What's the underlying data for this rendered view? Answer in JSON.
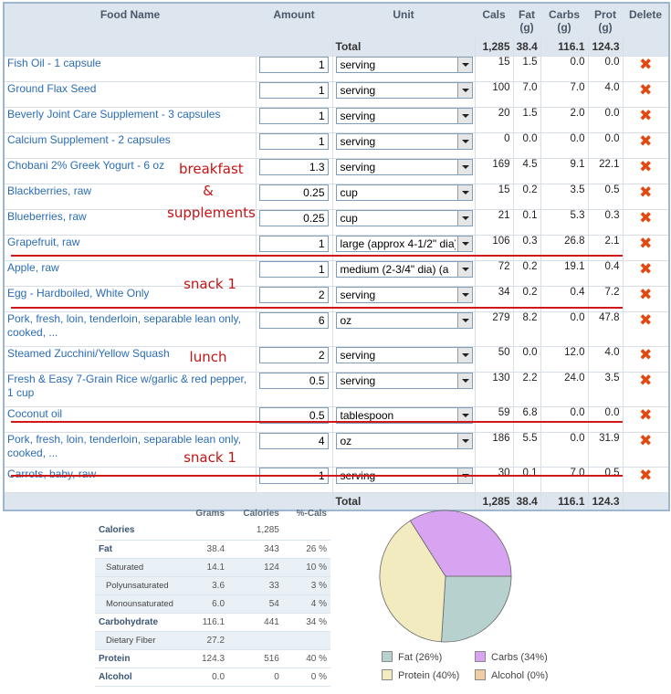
{
  "food_table": {
    "headers": {
      "food": "Food Name",
      "amount": "Amount",
      "unit": "Unit",
      "cals": "Cals",
      "fat": "Fat\n(g)",
      "carbs": "Carbs\n(g)",
      "prot": "Prot\n(g)",
      "delete": "Delete"
    },
    "total_label": "Total",
    "totals": {
      "cals": "1,285",
      "fat": "38.4",
      "carbs": "116.1",
      "prot": "124.3"
    },
    "delete_icon": "delete-x-icon",
    "rows": [
      {
        "name": "Fish Oil - 1 capsule",
        "amount": "1",
        "unit": "serving",
        "cals": "15",
        "fat": "1.5",
        "carbs": "0.0",
        "prot": "0.0"
      },
      {
        "name": "Ground Flax Seed",
        "amount": "1",
        "unit": "serving",
        "cals": "100",
        "fat": "7.0",
        "carbs": "7.0",
        "prot": "4.0"
      },
      {
        "name": "Beverly Joint Care Supplement - 3 capsules",
        "amount": "1",
        "unit": "serving",
        "cals": "20",
        "fat": "1.5",
        "carbs": "2.0",
        "prot": "0.0"
      },
      {
        "name": "Calcium Supplement - 2 capsules",
        "amount": "1",
        "unit": "serving",
        "cals": "0",
        "fat": "0.0",
        "carbs": "0.0",
        "prot": "0.0"
      },
      {
        "name": "Chobani 2% Greek Yogurt - 6 oz",
        "amount": "1.3",
        "unit": "serving",
        "cals": "169",
        "fat": "4.5",
        "carbs": "9.1",
        "prot": "22.1"
      },
      {
        "name": "Blackberries, raw",
        "amount": "0.25",
        "unit": "cup",
        "cals": "15",
        "fat": "0.2",
        "carbs": "3.5",
        "prot": "0.5"
      },
      {
        "name": "Blueberries, raw",
        "amount": "0.25",
        "unit": "cup",
        "cals": "21",
        "fat": "0.1",
        "carbs": "5.3",
        "prot": "0.3"
      },
      {
        "name": "Grapefruit, raw",
        "amount": "1",
        "unit": "large (approx 4-1/2\" dia)",
        "cals": "106",
        "fat": "0.3",
        "carbs": "26.8",
        "prot": "2.1"
      },
      {
        "name": "Apple, raw",
        "amount": "1",
        "unit": "medium (2-3/4\" dia) (a",
        "cals": "72",
        "fat": "0.2",
        "carbs": "19.1",
        "prot": "0.4"
      },
      {
        "name": "Egg - Hardboiled, White Only",
        "amount": "2",
        "unit": "serving",
        "cals": "34",
        "fat": "0.2",
        "carbs": "0.4",
        "prot": "7.2"
      },
      {
        "name": "Pork, fresh, loin, tenderloin, separable lean only, cooked, ...",
        "amount": "6",
        "unit": "oz",
        "cals": "279",
        "fat": "8.2",
        "carbs": "0.0",
        "prot": "47.8"
      },
      {
        "name": "Steamed Zucchini/Yellow Squash",
        "amount": "2",
        "unit": "serving",
        "cals": "50",
        "fat": "0.0",
        "carbs": "12.0",
        "prot": "4.0"
      },
      {
        "name": "Fresh & Easy 7-Grain Rice w/garlic & red pepper, 1 cup",
        "amount": "0.5",
        "unit": "serving",
        "cals": "130",
        "fat": "2.2",
        "carbs": "24.0",
        "prot": "3.5"
      },
      {
        "name": "Coconut oil",
        "amount": "0.5",
        "unit": "tablespoon",
        "cals": "59",
        "fat": "6.8",
        "carbs": "0.0",
        "prot": "0.0"
      },
      {
        "name": "Pork, fresh, loin, tenderloin, separable lean only, cooked, ...",
        "amount": "4",
        "unit": "oz",
        "cals": "186",
        "fat": "5.5",
        "carbs": "0.0",
        "prot": "31.9"
      },
      {
        "name": "Carrots, baby, raw",
        "amount": "1",
        "unit": "serving",
        "cals": "30",
        "fat": "0.1",
        "carbs": "7.0",
        "prot": "0.5"
      }
    ]
  },
  "annotations": {
    "breakfast": "breakfast",
    "amp": "&",
    "supplements": "supplements",
    "snack1a": "snack 1",
    "lunch": "lunch",
    "snack1b": "snack 1",
    "color": "#c51414"
  },
  "summary": {
    "headers": [
      "Grams",
      "Calories",
      "%-Cals"
    ],
    "rows": [
      {
        "label": "Calories",
        "grams": "",
        "calories": "1,285",
        "pct": ""
      },
      {
        "label": "Fat",
        "grams": "38.4",
        "calories": "343",
        "pct": "26 %"
      },
      {
        "label": "Saturated",
        "grams": "14.1",
        "calories": "124",
        "pct": "10 %"
      },
      {
        "label": "Polyunsaturated",
        "grams": "3.6",
        "calories": "33",
        "pct": "3 %"
      },
      {
        "label": "Monounsaturated",
        "grams": "6.0",
        "calories": "54",
        "pct": "4 %"
      },
      {
        "label": "Carbohydrate",
        "grams": "116.1",
        "calories": "441",
        "pct": "34 %"
      },
      {
        "label": "Dietary Fiber",
        "grams": "27.2",
        "calories": "",
        "pct": ""
      },
      {
        "label": "Protein",
        "grams": "124.3",
        "calories": "516",
        "pct": "40 %"
      },
      {
        "label": "Alcohol",
        "grams": "0.0",
        "calories": "0",
        "pct": "0 %"
      }
    ]
  },
  "chart_data": {
    "type": "pie",
    "slices": [
      {
        "label": "Fat",
        "pct_label": "(26%)",
        "value": 26,
        "color": "#b7d1cf"
      },
      {
        "label": "Carbs",
        "pct_label": "(34%)",
        "value": 34,
        "color": "#d8a3f0"
      },
      {
        "label": "Protein",
        "pct_label": "(40%)",
        "value": 40,
        "color": "#f3ebc0"
      },
      {
        "label": "Alcohol",
        "pct_label": "(0%)",
        "value": 0,
        "color": "#f1cda3"
      }
    ],
    "legend": "bottom"
  }
}
